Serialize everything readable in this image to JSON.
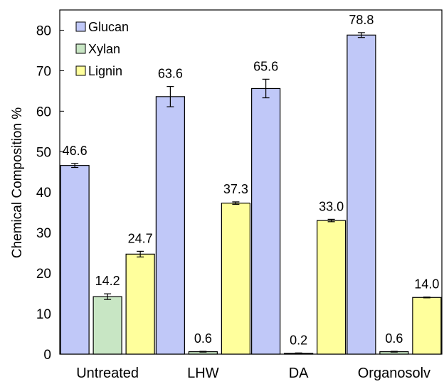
{
  "chart_data": {
    "type": "bar",
    "title": "",
    "xlabel": "",
    "ylabel": "Chemical Composition %",
    "ylim": [
      0,
      85
    ],
    "yticks": [
      0,
      10,
      20,
      30,
      40,
      50,
      60,
      70,
      80
    ],
    "grid": false,
    "legend_position": "top-left",
    "categories": [
      "Untreated",
      "LHW",
      "DA",
      "Organosolv"
    ],
    "series": [
      {
        "name": "Glucan",
        "color": "#c0c8f8",
        "values": [
          46.6,
          63.6,
          65.6,
          78.8
        ],
        "errors": [
          0.5,
          2.5,
          2.3,
          0.6
        ]
      },
      {
        "name": "Xylan",
        "color": "#c8e6c4",
        "values": [
          14.2,
          0.6,
          0.2,
          0.6
        ],
        "errors": [
          0.7,
          0.1,
          0.1,
          0.1
        ]
      },
      {
        "name": "Lignin",
        "color": "#ffff9c",
        "values": [
          24.7,
          37.3,
          33.0,
          14.0
        ],
        "errors": [
          0.7,
          0.3,
          0.3,
          0.1
        ]
      }
    ],
    "data_labels": [
      [
        "46.6",
        "63.6",
        "65.6",
        "78.8"
      ],
      [
        "14.2",
        "0.6",
        "0.2",
        "0.6"
      ],
      [
        "24.7",
        "37.3",
        "33.0",
        "14.0"
      ]
    ]
  }
}
